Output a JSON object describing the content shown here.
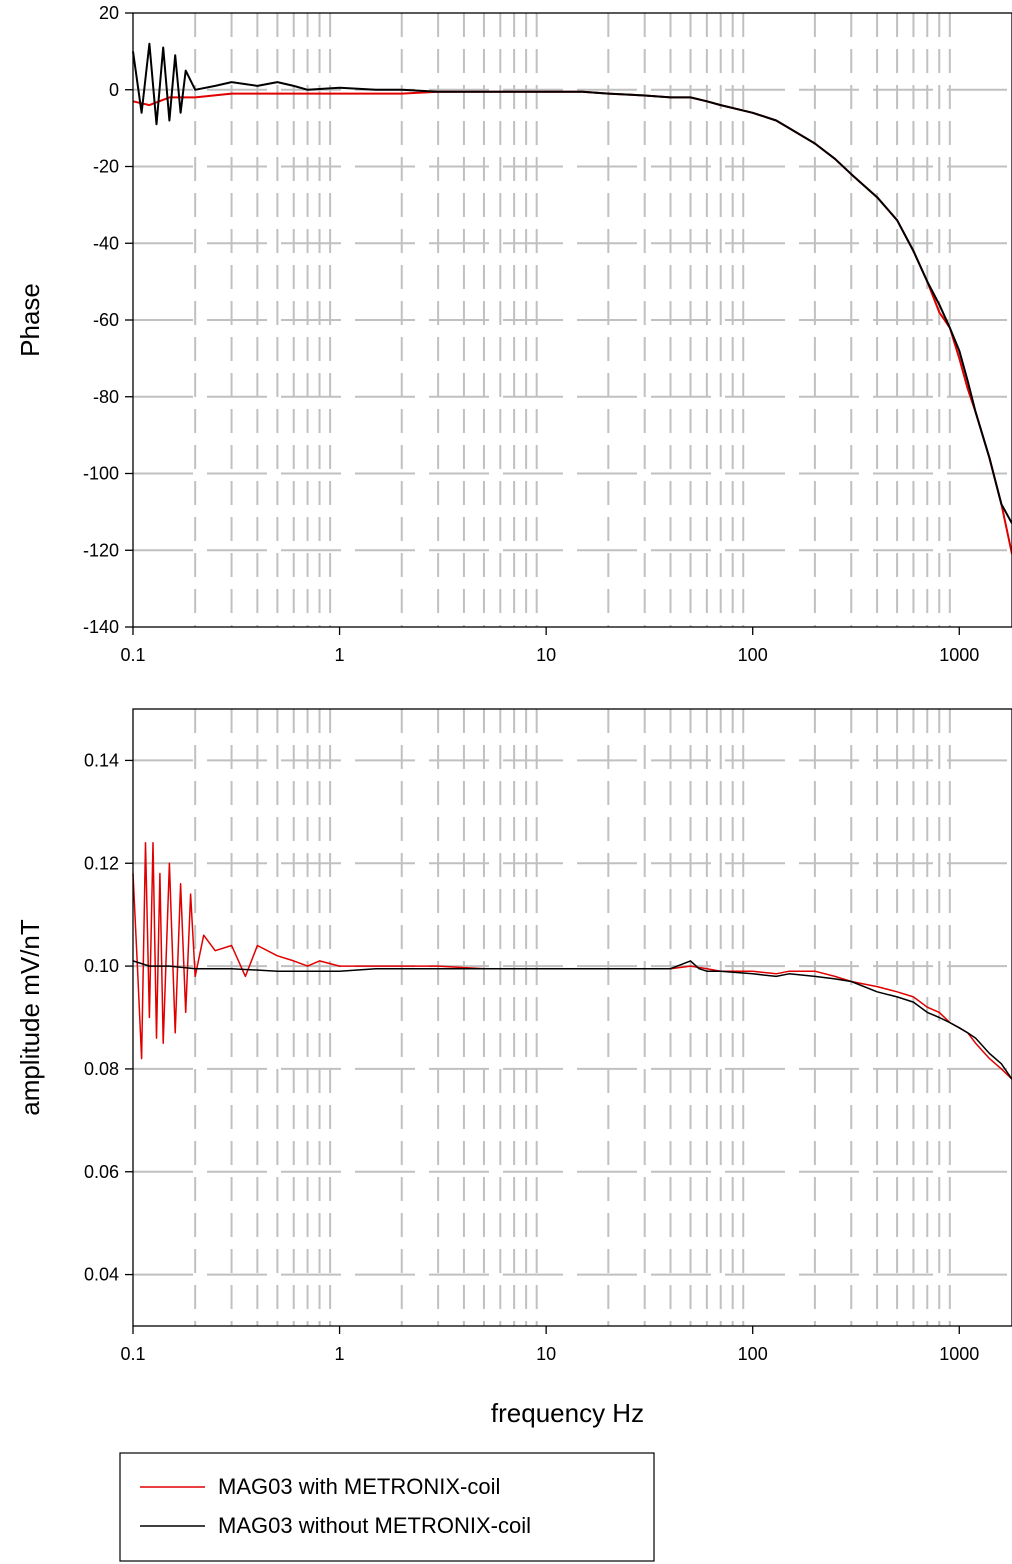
{
  "chart_data": [
    {
      "type": "line",
      "xscale": "log",
      "xlim": [
        0.1,
        1800
      ],
      "ylim": [
        -140,
        20
      ],
      "xticks": [
        0.1,
        1,
        10,
        100,
        1000
      ],
      "xtick_labels": [
        "0.1",
        "1",
        "10",
        "100",
        "1000"
      ],
      "yticks": [
        20,
        0,
        -20,
        -40,
        -60,
        -80,
        -100,
        -120,
        -140
      ],
      "ytick_labels": [
        "20",
        "0",
        "-20",
        "-40",
        "-60",
        "-80",
        "-100",
        "-120",
        "-140"
      ],
      "ylabel": "Phase",
      "xlabel": "",
      "grid": true,
      "series": [
        {
          "name": "MAG03 with METRONIX-coil",
          "color": "#e00000",
          "x": [
            0.1,
            0.12,
            0.15,
            0.2,
            0.3,
            0.5,
            0.7,
            1,
            1.5,
            2,
            3,
            5,
            7,
            10,
            15,
            20,
            30,
            40,
            50,
            60,
            70,
            100,
            130,
            150,
            200,
            250,
            300,
            400,
            500,
            600,
            700,
            800,
            900,
            1000,
            1100,
            1200,
            1400,
            1600,
            1800
          ],
          "y": [
            -3,
            -4,
            -2,
            -2,
            -1,
            -1,
            -1,
            -1,
            -1,
            -1,
            -0.5,
            -0.5,
            -0.5,
            -0.5,
            -0.5,
            -1,
            -1.5,
            -2,
            -2,
            -3,
            -4,
            -6,
            -8,
            -10,
            -14,
            -18,
            -22,
            -28,
            -34,
            -42,
            -50,
            -58,
            -62,
            -70,
            -78,
            -84,
            -96,
            -108,
            -121
          ]
        },
        {
          "name": "MAG03 without METRONIX-coil",
          "color": "#000000",
          "x": [
            0.1,
            0.11,
            0.12,
            0.13,
            0.14,
            0.15,
            0.16,
            0.17,
            0.18,
            0.2,
            0.25,
            0.3,
            0.4,
            0.5,
            0.6,
            0.7,
            1,
            1.5,
            2,
            3,
            5,
            7,
            10,
            15,
            20,
            30,
            40,
            50,
            60,
            70,
            100,
            130,
            150,
            200,
            250,
            300,
            400,
            500,
            600,
            700,
            800,
            900,
            1000,
            1100,
            1200,
            1400,
            1600,
            1800
          ],
          "y": [
            10,
            -6,
            12,
            -9,
            11,
            -8,
            9,
            -6,
            5,
            0,
            1,
            2,
            1,
            2,
            1,
            0,
            0.5,
            0,
            0,
            -0.5,
            -0.5,
            -0.5,
            -0.5,
            -0.5,
            -1,
            -1.5,
            -2,
            -2,
            -3,
            -4,
            -6,
            -8,
            -10,
            -14,
            -18,
            -22,
            -28,
            -34,
            -42,
            -50,
            -56,
            -62,
            -68,
            -76,
            -84,
            -96,
            -108,
            -113
          ]
        }
      ]
    },
    {
      "type": "line",
      "xscale": "log",
      "xlim": [
        0.1,
        1800
      ],
      "ylim": [
        0.03,
        0.15
      ],
      "xticks": [
        0.1,
        1,
        10,
        100,
        1000
      ],
      "xtick_labels": [
        "0.1",
        "1",
        "10",
        "100",
        "1000"
      ],
      "yticks": [
        0.14,
        0.12,
        0.1,
        0.08,
        0.06,
        0.04
      ],
      "ytick_labels": [
        "0.14",
        "0.12",
        "0.10",
        "0.08",
        "0.06",
        "0.04"
      ],
      "ylabel": "amplitude  mV/nT",
      "xlabel": "frequency  Hz",
      "grid": true,
      "series": [
        {
          "name": "MAG03 with METRONIX-coil",
          "color": "#e00000",
          "x": [
            0.1,
            0.105,
            0.11,
            0.115,
            0.12,
            0.125,
            0.13,
            0.135,
            0.14,
            0.15,
            0.16,
            0.17,
            0.18,
            0.19,
            0.2,
            0.22,
            0.25,
            0.3,
            0.35,
            0.4,
            0.5,
            0.6,
            0.7,
            0.8,
            1,
            1.5,
            2,
            3,
            5,
            7,
            10,
            15,
            20,
            30,
            40,
            50,
            60,
            70,
            100,
            130,
            150,
            200,
            250,
            300,
            400,
            500,
            600,
            700,
            800,
            900,
            1000,
            1100,
            1200,
            1400,
            1600,
            1800
          ],
          "y": [
            0.118,
            0.1,
            0.082,
            0.124,
            0.09,
            0.124,
            0.086,
            0.118,
            0.085,
            0.12,
            0.087,
            0.116,
            0.091,
            0.114,
            0.098,
            0.106,
            0.103,
            0.104,
            0.098,
            0.104,
            0.102,
            0.101,
            0.1,
            0.101,
            0.1,
            0.1,
            0.1,
            0.1,
            0.0995,
            0.0995,
            0.0995,
            0.0995,
            0.0995,
            0.0995,
            0.0995,
            0.1,
            0.0995,
            0.099,
            0.099,
            0.0985,
            0.099,
            0.099,
            0.098,
            0.097,
            0.096,
            0.095,
            0.094,
            0.092,
            0.091,
            0.089,
            0.088,
            0.087,
            0.085,
            0.082,
            0.08,
            0.078
          ]
        },
        {
          "name": "MAG03 without METRONIX-coil",
          "color": "#000000",
          "x": [
            0.1,
            0.12,
            0.15,
            0.2,
            0.3,
            0.5,
            0.7,
            1,
            1.5,
            2,
            3,
            5,
            7,
            10,
            15,
            20,
            30,
            40,
            50,
            55,
            60,
            70,
            100,
            130,
            150,
            200,
            250,
            300,
            400,
            500,
            600,
            700,
            800,
            900,
            1000,
            1100,
            1200,
            1400,
            1600,
            1800
          ],
          "y": [
            0.101,
            0.1,
            0.1,
            0.0995,
            0.0995,
            0.099,
            0.099,
            0.099,
            0.0995,
            0.0995,
            0.0995,
            0.0995,
            0.0995,
            0.0995,
            0.0995,
            0.0995,
            0.0995,
            0.0995,
            0.101,
            0.0995,
            0.099,
            0.099,
            0.0985,
            0.098,
            0.0985,
            0.098,
            0.0975,
            0.097,
            0.095,
            0.094,
            0.093,
            0.091,
            0.09,
            0.089,
            0.088,
            0.087,
            0.086,
            0.083,
            0.081,
            0.078
          ]
        }
      ]
    }
  ],
  "legend": {
    "items": [
      {
        "label": "MAG03 with METRONIX-coil",
        "color": "#e00000"
      },
      {
        "label": "MAG03 without METRONIX-coil",
        "color": "#000000"
      }
    ]
  }
}
